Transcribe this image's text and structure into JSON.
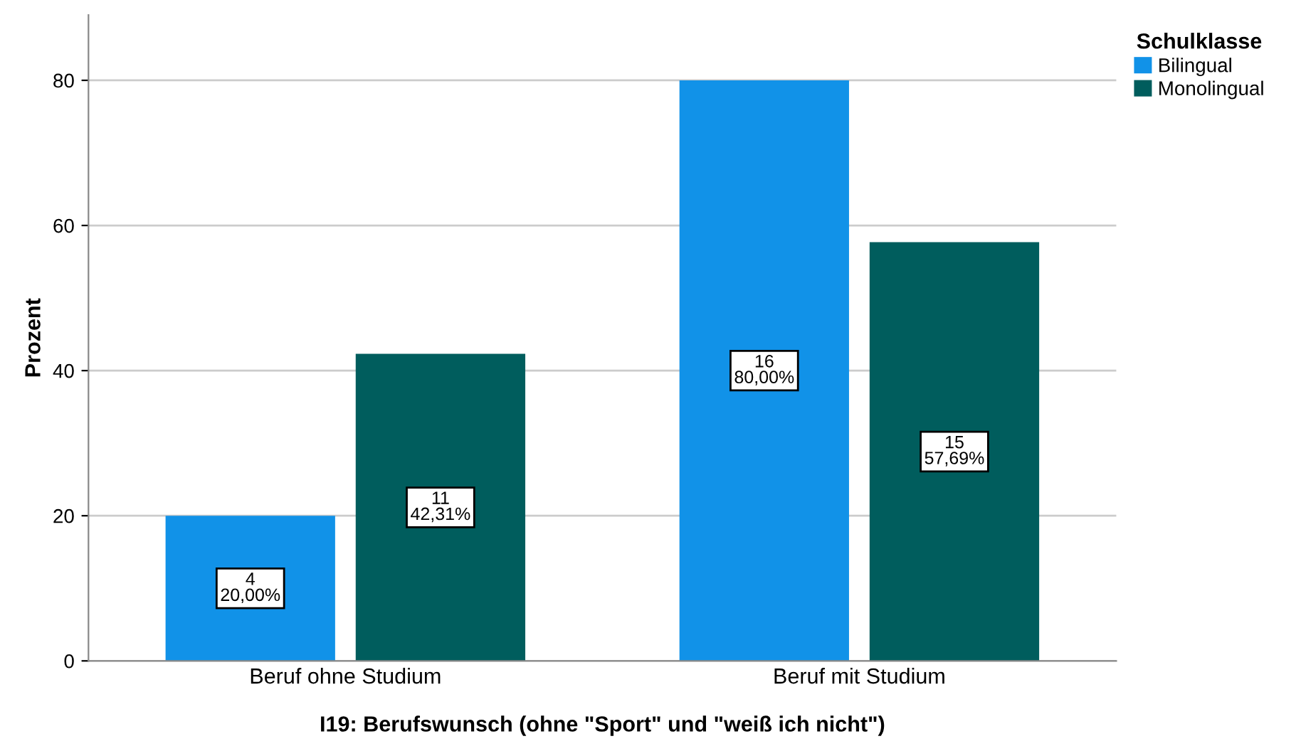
{
  "chart_data": {
    "type": "bar",
    "xlabel": "I19: Berufswunsch (ohne \"Sport\" und \"weiß ich nicht\")",
    "ylabel": "Prozent",
    "legend_title": "Schulklasse",
    "categories": [
      "Beruf ohne Studium",
      "Beruf mit Studium"
    ],
    "series": [
      {
        "name": "Bilingual",
        "color": "#1192e8",
        "values": [
          20.0,
          80.0
        ],
        "value_labels": [
          "4\n20,00%",
          "16\n80,00%"
        ]
      },
      {
        "name": "Monolingual",
        "color": "#005d5d",
        "values": [
          42.31,
          57.69
        ],
        "value_labels": [
          "11\n42,31%",
          "15\n57,69%"
        ]
      }
    ],
    "ylim": [
      0,
      89
    ],
    "yticks": [
      0,
      20,
      40,
      60,
      80
    ],
    "grid": "y",
    "legend": "top right"
  }
}
